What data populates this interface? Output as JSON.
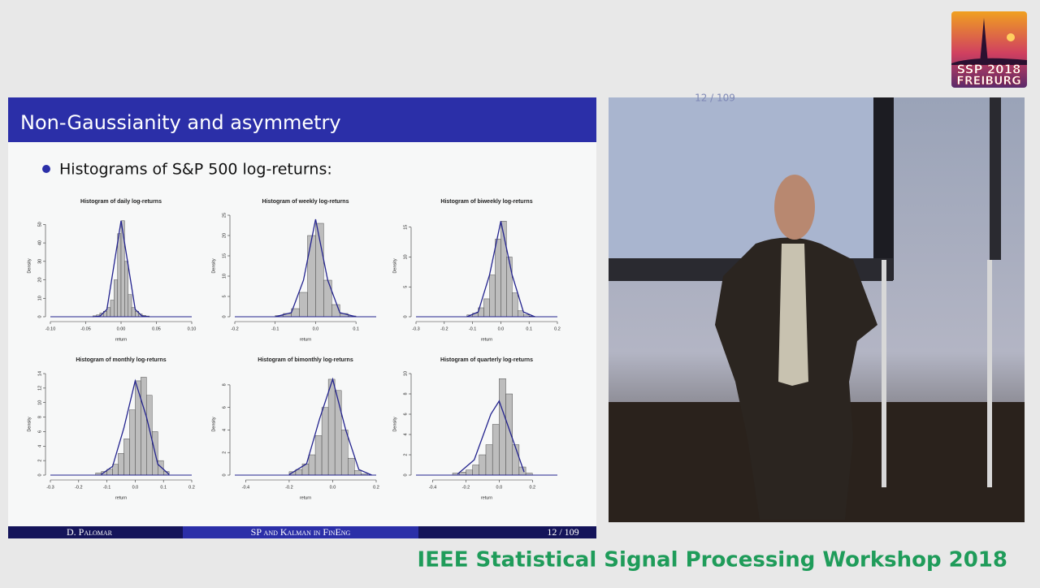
{
  "logo": {
    "line1": "SSP 2018",
    "line2": "FREIBURG"
  },
  "slide": {
    "title": "Non-Gaussianity and asymmetry",
    "bullet": "Histograms of S&P 500 log-returns:",
    "charts": [
      {
        "type": "histogram",
        "title": "Histogram of daily log-returns",
        "xlabel": "return",
        "ylabel": "Density",
        "bins": [
          -0.04,
          -0.035,
          -0.03,
          -0.025,
          -0.02,
          -0.015,
          -0.01,
          -0.005,
          0,
          0.005,
          0.01,
          0.015,
          0.02,
          0.025,
          0.03,
          0.035,
          0.04
        ],
        "counts": [
          0.5,
          1,
          2,
          3,
          5,
          9,
          20,
          45,
          52,
          30,
          12,
          5,
          3,
          1.5,
          0.8,
          0.4
        ],
        "curve": {
          "x": [
            -0.04,
            -0.03,
            -0.02,
            -0.01,
            0,
            0.01,
            0.02,
            0.03,
            0.04
          ],
          "values": [
            0,
            0.3,
            4,
            28,
            52,
            28,
            4,
            0.3,
            0
          ]
        },
        "xlim": [
          -0.1,
          0.1
        ],
        "ylim": [
          0,
          55
        ],
        "xticks": [
          {
            "value": -0.1,
            "label": "-0.10"
          },
          -0.05,
          {
            "value": 0,
            "label": "0.00"
          },
          0.05,
          {
            "value": 0.1,
            "label": "0.10"
          }
        ],
        "yticks": [
          0,
          10,
          20,
          30,
          40,
          50
        ],
        "bar_color": "#bdbdbd",
        "curve_color": "#23238e"
      },
      {
        "type": "histogram",
        "title": "Histogram of weekly log-returns",
        "xlabel": "return",
        "ylabel": "Density",
        "bins": [
          -0.1,
          -0.08,
          -0.06,
          -0.04,
          -0.02,
          0,
          0.02,
          0.04,
          0.06,
          0.08,
          0.1
        ],
        "counts": [
          0.3,
          0.8,
          2,
          6,
          20,
          23,
          9,
          3,
          0.8,
          0.2
        ],
        "curve": {
          "x": [
            -0.1,
            -0.06,
            -0.03,
            0,
            0.03,
            0.06,
            0.1
          ],
          "values": [
            0,
            1,
            9,
            24,
            9,
            1,
            0
          ]
        },
        "xlim": [
          -0.2,
          0.15
        ],
        "ylim": [
          0,
          25
        ],
        "xticks": [
          -0.2,
          -0.1,
          {
            "value": 0,
            "label": "0.0"
          },
          0.1
        ],
        "yticks": [
          0,
          5,
          10,
          15,
          20,
          25
        ],
        "bar_color": "#bdbdbd",
        "curve_color": "#23238e"
      },
      {
        "type": "histogram",
        "title": "Histogram of biweekly log-returns",
        "xlabel": "return",
        "ylabel": "Density",
        "bins": [
          -0.12,
          -0.1,
          -0.08,
          -0.06,
          -0.04,
          -0.02,
          0,
          0.02,
          0.04,
          0.06,
          0.08,
          0.1,
          0.12
        ],
        "counts": [
          0.3,
          0.6,
          1.5,
          3,
          7,
          13,
          16,
          10,
          4,
          1,
          0.3,
          0.1
        ],
        "curve": {
          "x": [
            -0.12,
            -0.08,
            -0.04,
            0,
            0.04,
            0.08,
            0.12
          ],
          "values": [
            0,
            0.8,
            7,
            16,
            7,
            0.8,
            0
          ]
        },
        "xlim": [
          -0.3,
          0.2
        ],
        "ylim": [
          0,
          17
        ],
        "xticks": [
          -0.3,
          -0.2,
          -0.1,
          {
            "value": 0,
            "label": "0.0"
          },
          0.1,
          0.2
        ],
        "yticks": [
          0,
          5,
          10,
          15
        ],
        "bar_color": "#bdbdbd",
        "curve_color": "#23238e"
      },
      {
        "type": "histogram",
        "title": "Histogram of monthly log-returns",
        "xlabel": "return",
        "ylabel": "Density",
        "bins": [
          -0.14,
          -0.12,
          -0.1,
          -0.08,
          -0.06,
          -0.04,
          -0.02,
          0,
          0.02,
          0.04,
          0.06,
          0.08,
          0.1,
          0.12
        ],
        "counts": [
          0.3,
          0.5,
          0.8,
          1.5,
          3,
          5,
          9,
          13,
          13.5,
          11,
          6,
          2,
          0.5
        ],
        "curve": {
          "x": [
            -0.12,
            -0.08,
            -0.04,
            0,
            0.04,
            0.08,
            0.12
          ],
          "values": [
            0.1,
            1.2,
            6.5,
            13,
            8,
            1.5,
            0.1
          ]
        },
        "xlim": [
          -0.3,
          0.2
        ],
        "ylim": [
          0,
          14
        ],
        "xticks": [
          -0.3,
          -0.2,
          -0.1,
          {
            "value": 0,
            "label": "0.0"
          },
          0.1,
          0.2
        ],
        "yticks": [
          0,
          2,
          4,
          6,
          8,
          10,
          12,
          14
        ],
        "bar_color": "#bdbdbd",
        "curve_color": "#23238e"
      },
      {
        "type": "histogram",
        "title": "Histogram of bimonthly log-returns",
        "xlabel": "return",
        "ylabel": "Density",
        "bins": [
          -0.2,
          -0.17,
          -0.14,
          -0.11,
          -0.08,
          -0.05,
          -0.02,
          0.01,
          0.04,
          0.07,
          0.1,
          0.13,
          0.16
        ],
        "counts": [
          0.3,
          0.5,
          1,
          1.8,
          3.5,
          6,
          8.5,
          7.5,
          4,
          1.5,
          0.4,
          0.1
        ],
        "curve": {
          "x": [
            -0.2,
            -0.12,
            -0.06,
            0,
            0.06,
            0.12,
            0.18
          ],
          "values": [
            0.05,
            1,
            5,
            8.5,
            4,
            0.5,
            0
          ]
        },
        "xlim": [
          -0.45,
          0.2
        ],
        "ylim": [
          0,
          9
        ],
        "xticks": [
          -0.4,
          -0.2,
          {
            "value": 0,
            "label": "0.0"
          },
          0.2
        ],
        "yticks": [
          0,
          2,
          4,
          6,
          8
        ],
        "bar_color": "#bdbdbd",
        "curve_color": "#23238e"
      },
      {
        "type": "histogram",
        "title": "Histogram of quarterly log-returns",
        "xlabel": "return",
        "ylabel": "Density",
        "bins": [
          -0.28,
          -0.24,
          -0.2,
          -0.16,
          -0.12,
          -0.08,
          -0.04,
          0,
          0.04,
          0.08,
          0.12,
          0.16,
          0.2
        ],
        "counts": [
          0.2,
          0.3,
          0.5,
          1,
          2,
          3,
          5,
          9.5,
          8,
          3,
          0.8,
          0.2
        ],
        "curve": {
          "x": [
            -0.25,
            -0.15,
            -0.05,
            0,
            0.05,
            0.15
          ],
          "values": [
            0.1,
            1.5,
            6,
            7.3,
            5,
            0.3
          ]
        },
        "xlim": [
          -0.5,
          0.35
        ],
        "ylim": [
          0,
          10
        ],
        "xticks": [
          -0.4,
          -0.2,
          {
            "value": 0,
            "label": "0.0"
          },
          0.2
        ],
        "yticks": [
          0,
          2,
          4,
          6,
          8,
          10
        ],
        "bar_color": "#bdbdbd",
        "curve_color": "#23238e"
      }
    ],
    "footer": {
      "author": "D. Palomar",
      "talk": "SP and Kalman in FinEng",
      "page": "12 / 109"
    }
  },
  "video": {
    "overlay": "12 / 109"
  },
  "caption": "IEEE Statistical Signal Processing Workshop 2018"
}
